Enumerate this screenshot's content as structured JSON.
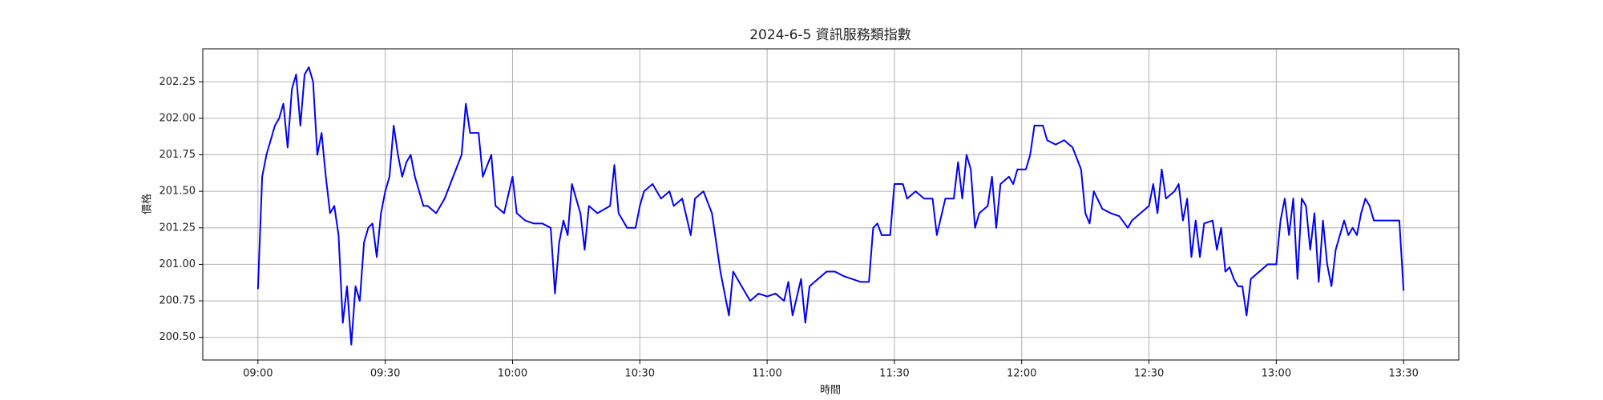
{
  "chart_data": {
    "type": "line",
    "title": "2024-6-5 資訊服務類指數",
    "x_label": "時間",
    "y_label": "價格",
    "color": "#0000ff",
    "grid": true,
    "x": [
      "09:00",
      "09:01",
      "09:02",
      "09:03",
      "09:04",
      "09:05",
      "09:06",
      "09:07",
      "09:08",
      "09:09",
      "09:10",
      "09:11",
      "09:12",
      "09:13",
      "09:14",
      "09:15",
      "09:16",
      "09:17",
      "09:18",
      "09:19",
      "09:20",
      "09:21",
      "09:22",
      "09:23",
      "09:24",
      "09:25",
      "09:26",
      "09:27",
      "09:28",
      "09:29",
      "09:30",
      "09:31",
      "09:32",
      "09:33",
      "09:34",
      "09:35",
      "09:36",
      "09:37",
      "09:38",
      "09:39",
      "09:40",
      "09:42",
      "09:44",
      "09:46",
      "09:48",
      "09:49",
      "09:50",
      "09:52",
      "09:53",
      "09:55",
      "09:56",
      "09:58",
      "10:00",
      "10:01",
      "10:03",
      "10:05",
      "10:07",
      "10:09",
      "10:10",
      "10:11",
      "10:12",
      "10:13",
      "10:14",
      "10:15",
      "10:16",
      "10:17",
      "10:18",
      "10:20",
      "10:23",
      "10:24",
      "10:25",
      "10:27",
      "10:29",
      "10:30",
      "10:31",
      "10:33",
      "10:35",
      "10:37",
      "10:38",
      "10:40",
      "10:42",
      "10:43",
      "10:45",
      "10:47",
      "10:48",
      "10:49",
      "10:51",
      "10:52",
      "10:54",
      "10:56",
      "10:58",
      "11:00",
      "11:02",
      "11:04",
      "11:05",
      "11:06",
      "11:08",
      "11:09",
      "11:10",
      "11:12",
      "11:14",
      "11:16",
      "11:18",
      "11:20",
      "11:22",
      "11:24",
      "11:25",
      "11:26",
      "11:27",
      "11:29",
      "11:30",
      "11:32",
      "11:33",
      "11:35",
      "11:37",
      "11:39",
      "11:40",
      "11:42",
      "11:44",
      "11:45",
      "11:46",
      "11:47",
      "11:48",
      "11:49",
      "11:50",
      "11:52",
      "11:53",
      "11:54",
      "11:55",
      "11:57",
      "11:58",
      "11:59",
      "12:01",
      "12:02",
      "12:03",
      "12:05",
      "12:06",
      "12:08",
      "12:10",
      "12:12",
      "12:14",
      "12:15",
      "12:16",
      "12:17",
      "12:19",
      "12:21",
      "12:23",
      "12:25",
      "12:26",
      "12:28",
      "12:30",
      "12:31",
      "12:32",
      "12:33",
      "12:34",
      "12:36",
      "12:37",
      "12:38",
      "12:39",
      "12:40",
      "12:41",
      "12:42",
      "12:43",
      "12:45",
      "12:46",
      "12:47",
      "12:48",
      "12:49",
      "12:50",
      "12:51",
      "12:52",
      "12:53",
      "12:54",
      "12:56",
      "12:58",
      "13:00",
      "13:01",
      "13:02",
      "13:03",
      "13:04",
      "13:05",
      "13:06",
      "13:07",
      "13:08",
      "13:09",
      "13:10",
      "13:11",
      "13:12",
      "13:13",
      "13:14",
      "13:15",
      "13:16",
      "13:17",
      "13:18",
      "13:19",
      "13:20",
      "13:21",
      "13:22",
      "13:23",
      "13:25",
      "13:27",
      "13:29",
      "13:30"
    ],
    "values": [
      200.83,
      201.6,
      201.75,
      201.85,
      201.95,
      202.0,
      202.1,
      201.8,
      202.2,
      202.3,
      201.95,
      202.3,
      202.35,
      202.25,
      201.75,
      201.9,
      201.6,
      201.35,
      201.4,
      201.2,
      200.6,
      200.85,
      200.45,
      200.85,
      200.75,
      201.15,
      201.25,
      201.28,
      201.05,
      201.35,
      201.5,
      201.6,
      201.95,
      201.75,
      201.6,
      201.7,
      201.75,
      201.6,
      201.5,
      201.4,
      201.4,
      201.35,
      201.45,
      201.6,
      201.75,
      202.1,
      201.9,
      201.9,
      201.6,
      201.75,
      201.4,
      201.35,
      201.6,
      201.35,
      201.3,
      201.28,
      201.28,
      201.25,
      200.8,
      201.15,
      201.3,
      201.2,
      201.55,
      201.45,
      201.35,
      201.1,
      201.4,
      201.35,
      201.4,
      201.68,
      201.35,
      201.25,
      201.25,
      201.4,
      201.5,
      201.55,
      201.45,
      201.5,
      201.4,
      201.45,
      201.2,
      201.45,
      201.5,
      201.35,
      201.15,
      200.95,
      200.65,
      200.95,
      200.85,
      200.75,
      200.8,
      200.78,
      200.8,
      200.75,
      200.88,
      200.65,
      200.9,
      200.6,
      200.85,
      200.9,
      200.95,
      200.95,
      200.92,
      200.9,
      200.88,
      200.88,
      201.25,
      201.28,
      201.2,
      201.2,
      201.55,
      201.55,
      201.45,
      201.5,
      201.45,
      201.45,
      201.2,
      201.45,
      201.45,
      201.7,
      201.45,
      201.75,
      201.65,
      201.25,
      201.35,
      201.4,
      201.6,
      201.25,
      201.55,
      201.6,
      201.55,
      201.65,
      201.65,
      201.75,
      201.95,
      201.95,
      201.85,
      201.82,
      201.85,
      201.8,
      201.65,
      201.35,
      201.28,
      201.5,
      201.38,
      201.35,
      201.33,
      201.25,
      201.3,
      201.35,
      201.4,
      201.55,
      201.35,
      201.65,
      201.45,
      201.5,
      201.55,
      201.3,
      201.45,
      201.05,
      201.3,
      201.05,
      201.28,
      201.3,
      201.1,
      201.25,
      200.95,
      200.98,
      200.9,
      200.85,
      200.85,
      200.65,
      200.9,
      200.95,
      201.0,
      201.0,
      201.3,
      201.45,
      201.2,
      201.45,
      200.9,
      201.45,
      201.4,
      201.1,
      201.35,
      200.88,
      201.3,
      201.0,
      200.85,
      201.1,
      201.2,
      201.3,
      201.2,
      201.25,
      201.2,
      201.35,
      201.45,
      201.4,
      201.3,
      201.3,
      201.3,
      201.3,
      200.82
    ],
    "xlim": [
      "08:47",
      "13:43"
    ],
    "xticks": [
      "09:00",
      "09:30",
      "10:00",
      "10:30",
      "11:00",
      "11:30",
      "12:00",
      "12:30",
      "13:00",
      "13:30"
    ],
    "ylim": [
      200.345,
      202.476
    ],
    "yticks": [
      {
        "value": 200.5,
        "label": "200.50"
      },
      200.75,
      {
        "value": 201,
        "label": "201.00"
      },
      201.25,
      {
        "value": 201.5,
        "label": "201.50"
      },
      201.75,
      {
        "value": 202,
        "label": "202.00"
      },
      202.25
    ]
  }
}
